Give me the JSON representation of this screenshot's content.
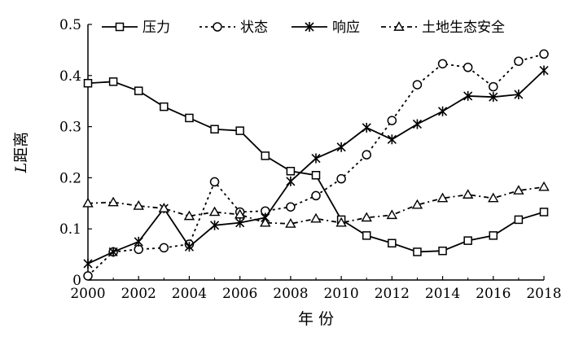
{
  "chart_data": {
    "type": "line",
    "xlabel": "年 份",
    "ylabel_italic": "L",
    "ylabel_rest": "距离",
    "xlim": [
      2000,
      2018
    ],
    "ylim": [
      0,
      0.5
    ],
    "xticks": [
      "2000",
      "2002",
      "2004",
      "2006",
      "2008",
      "2010",
      "2012",
      "2014",
      "2016",
      "2018"
    ],
    "yticks": [
      "0",
      "0.1",
      "0.2",
      "0.3",
      "0.4",
      "0.5"
    ],
    "grid": false,
    "legend_position": "top",
    "x": [
      2000,
      2001,
      2002,
      2003,
      2004,
      2005,
      2006,
      2007,
      2008,
      2009,
      2010,
      2011,
      2012,
      2013,
      2014,
      2015,
      2016,
      2017,
      2018
    ],
    "series": [
      {
        "name": "压力",
        "marker": "square",
        "dash": "solid",
        "values": [
          0.385,
          0.388,
          0.37,
          0.339,
          0.317,
          0.295,
          0.292,
          0.243,
          0.213,
          0.205,
          0.118,
          0.087,
          0.072,
          0.055,
          0.057,
          0.077,
          0.087,
          0.118,
          0.133
        ]
      },
      {
        "name": "状态",
        "marker": "circle",
        "dash": "dotted",
        "values": [
          0.008,
          0.055,
          0.06,
          0.063,
          0.07,
          0.192,
          0.133,
          0.135,
          0.143,
          0.165,
          0.198,
          0.245,
          0.312,
          0.382,
          0.423,
          0.416,
          0.378,
          0.428,
          0.442
        ]
      },
      {
        "name": "响应",
        "marker": "star",
        "dash": "solid",
        "values": [
          0.032,
          0.055,
          0.075,
          0.14,
          0.065,
          0.107,
          0.112,
          0.122,
          0.193,
          0.238,
          0.26,
          0.298,
          0.275,
          0.305,
          0.33,
          0.36,
          0.358,
          0.363,
          0.41
        ]
      },
      {
        "name": "土地生态安全",
        "marker": "triangle",
        "dash": "dashdot",
        "values": [
          0.15,
          0.152,
          0.145,
          0.14,
          0.125,
          0.133,
          0.128,
          0.112,
          0.11,
          0.12,
          0.112,
          0.122,
          0.127,
          0.147,
          0.16,
          0.167,
          0.16,
          0.175,
          0.182
        ]
      }
    ]
  }
}
